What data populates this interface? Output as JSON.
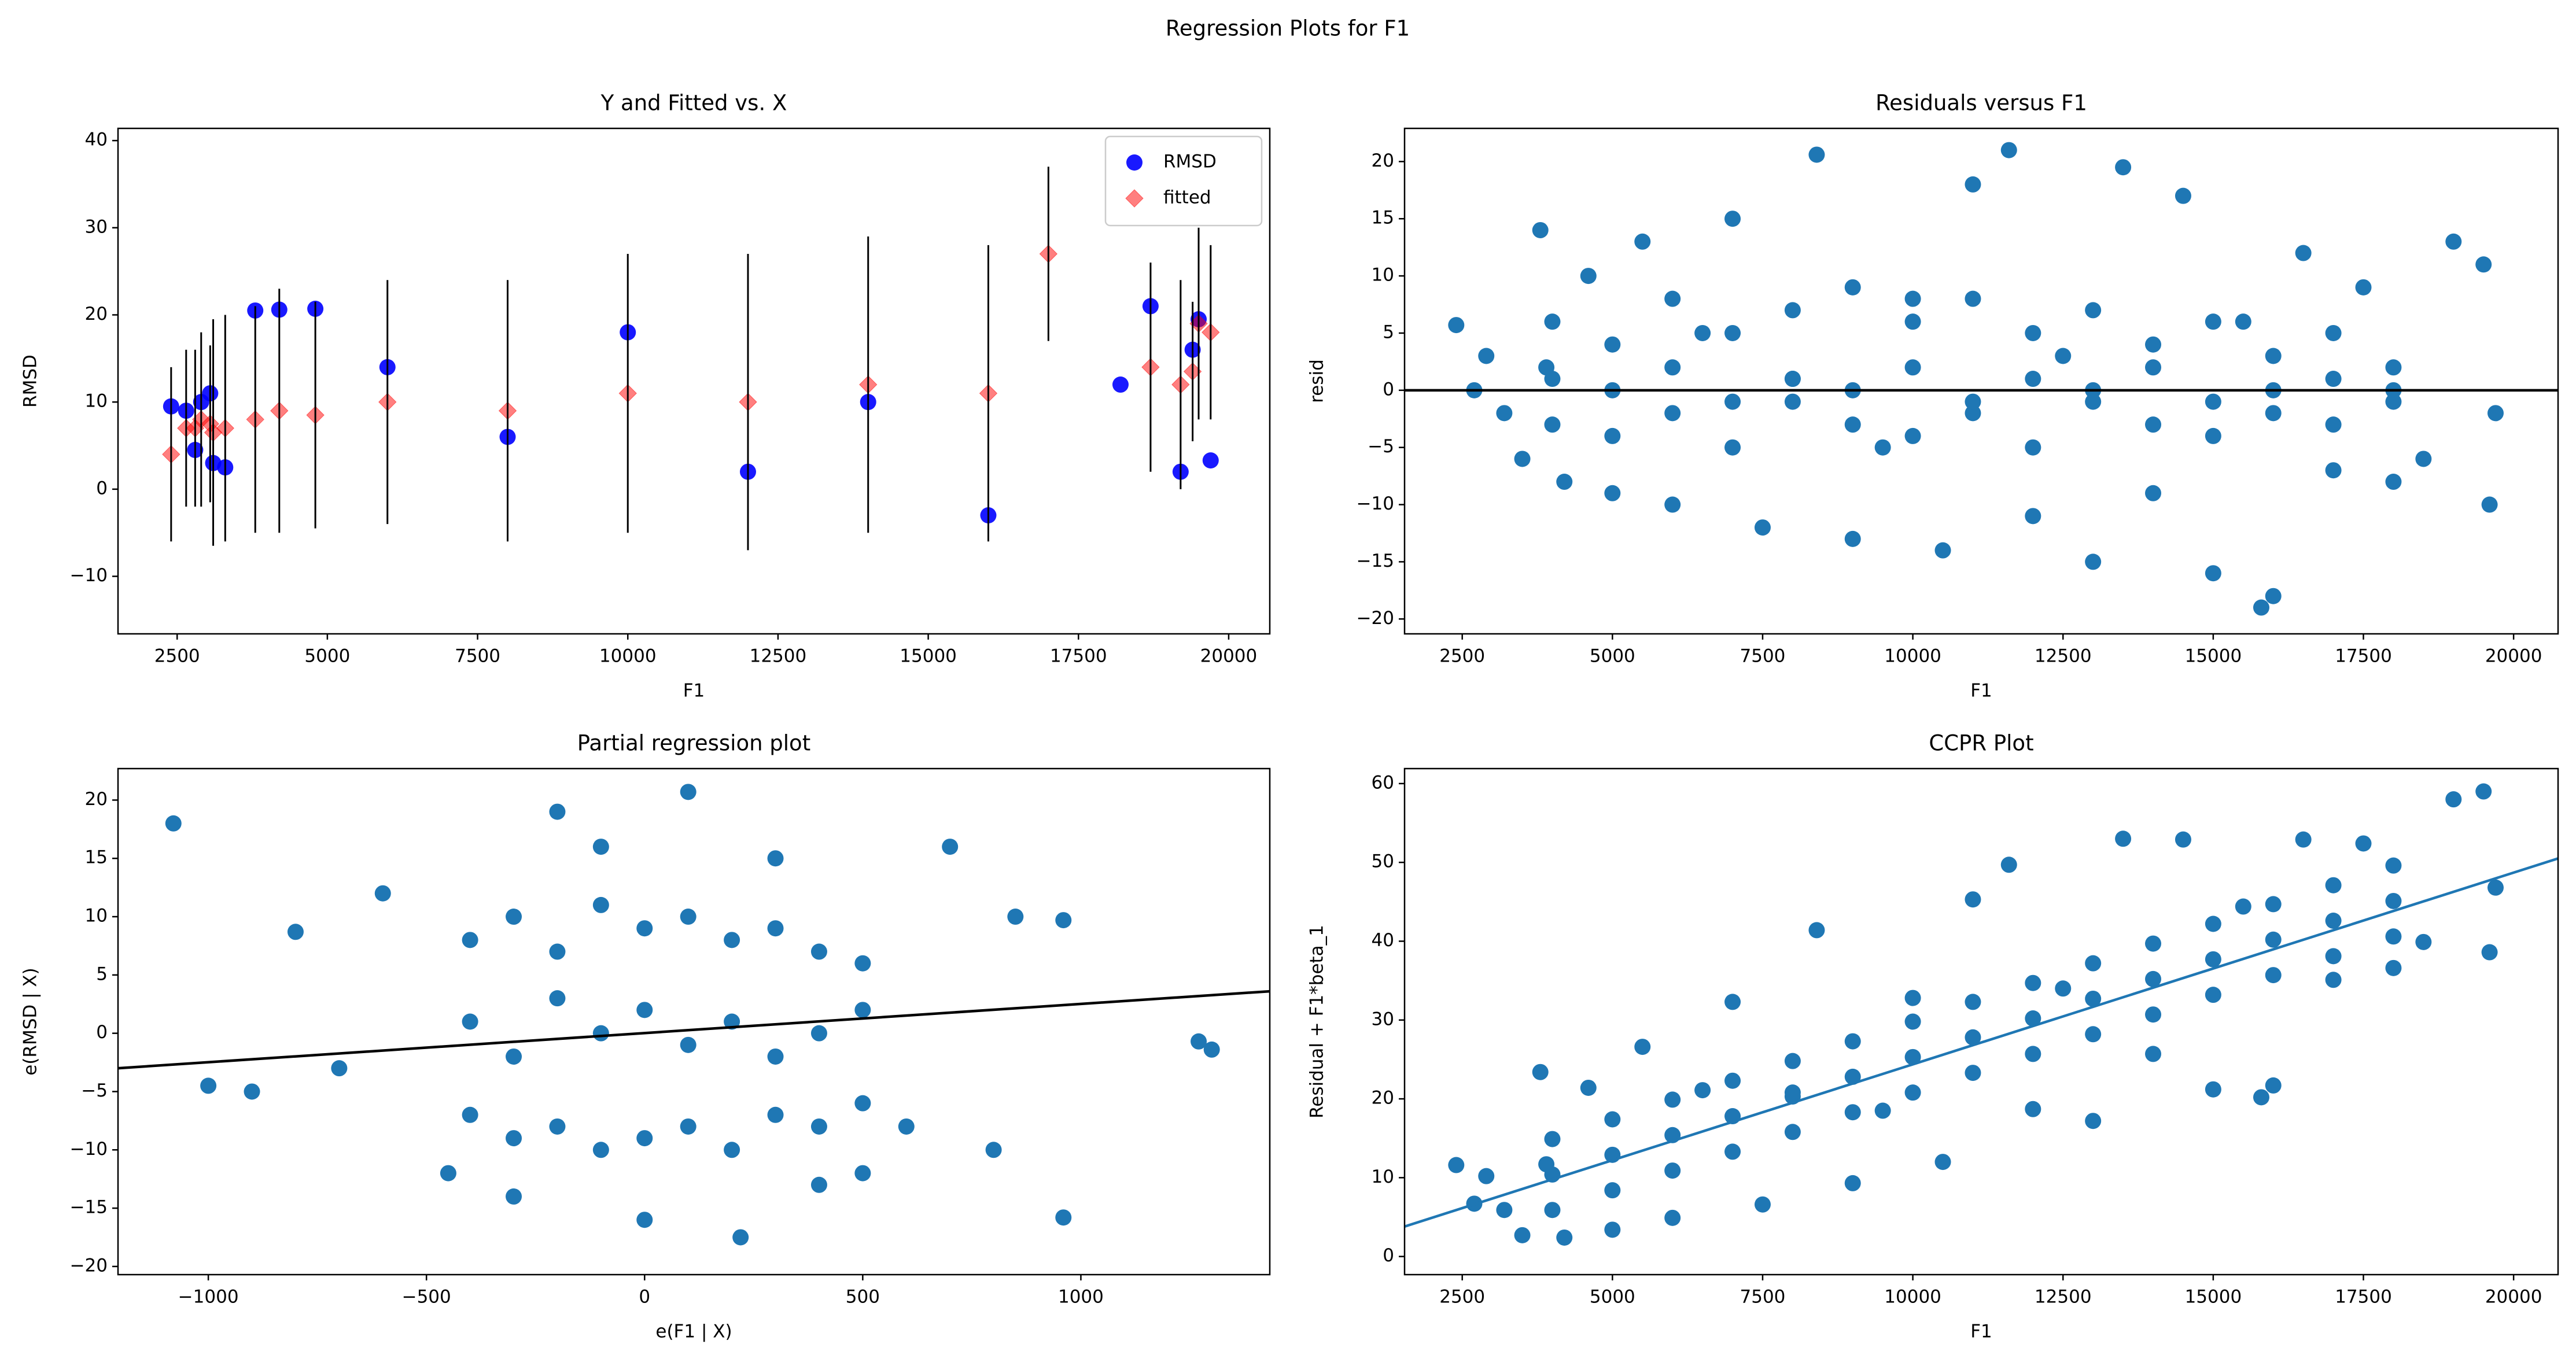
{
  "title": "Regression Plots for F1",
  "chart_data": [
    {
      "type": "scatter",
      "title": "Y and Fitted vs. X",
      "x_label": "F1",
      "y_label": "RMSD",
      "xlim": [
        1516,
        20684
      ],
      "ylim": [
        -16.6,
        41.4
      ],
      "xticks": [
        2500,
        5000,
        7500,
        10000,
        12500,
        15000,
        17500,
        20000
      ],
      "yticks": [
        {
          "value": -10,
          "label": "−10"
        },
        0,
        10,
        20,
        30,
        40
      ],
      "legend": "upper right",
      "series": [
        {
          "name": "RMSD",
          "color": "#0000ff",
          "marker": "o",
          "x": [
            2400,
            2650,
            2900,
            3050,
            2800,
            3100,
            3300,
            3800,
            4200,
            4800,
            6000,
            8000,
            10000,
            12000,
            14000,
            16000,
            18200,
            18700,
            19200,
            19500,
            19700,
            19400
          ],
          "values": [
            9.5,
            9,
            10,
            11,
            4.5,
            3,
            2.5,
            20.5,
            20.6,
            20.7,
            14,
            6,
            18,
            2,
            10,
            -3,
            12,
            21,
            2,
            19.5,
            3.3,
            16
          ]
        },
        {
          "name": "fitted",
          "color": "#ff0000",
          "marker": "D",
          "x": [
            2400,
            2650,
            2900,
            3050,
            2800,
            3100,
            3300,
            3800,
            4200,
            4800,
            6000,
            8000,
            10000,
            12000,
            14000,
            16000,
            17000,
            18700,
            19200,
            19500,
            19700,
            19400
          ],
          "values": [
            4,
            7,
            8,
            7.5,
            7,
            6.5,
            7,
            8,
            9,
            8.5,
            10,
            9,
            11,
            10,
            12,
            11,
            27,
            14,
            12,
            19,
            18,
            13.5
          ],
          "errors": [
            10,
            9,
            10,
            9,
            9,
            13,
            13,
            13,
            14,
            13,
            14,
            15,
            16,
            17,
            17,
            17,
            10,
            12,
            12,
            11,
            10,
            8
          ]
        }
      ]
    },
    {
      "type": "scatter",
      "title": "Residuals versus F1",
      "x_label": "F1",
      "y_label": "resid",
      "xlim": [
        1540,
        20740
      ],
      "ylim": [
        -21.3,
        22.9
      ],
      "xticks": [
        2500,
        5000,
        7500,
        10000,
        12500,
        15000,
        17500,
        20000
      ],
      "yticks": [
        {
          "value": -20,
          "label": "−20"
        },
        {
          "value": -15,
          "label": "−15"
        },
        {
          "value": -10,
          "label": "−10"
        },
        {
          "value": -5,
          "label": "−5"
        },
        0,
        5,
        10,
        15,
        20
      ],
      "color": "#1f77b4",
      "hline": 0,
      "hline_color": "#000000",
      "x": [
        2400,
        2700,
        2900,
        3200,
        3500,
        3800,
        3900,
        4200,
        4600,
        5000,
        5500,
        6000,
        6500,
        7000,
        7500,
        8000,
        8400,
        9000,
        9500,
        10000,
        10500,
        11000,
        11600,
        12000,
        12500,
        13000,
        13500,
        14000,
        14500,
        15000,
        15500,
        15800,
        16000,
        16500,
        17000,
        17500,
        18000,
        18500,
        19000,
        19500,
        19700,
        19600,
        4000,
        5000,
        6000,
        7000,
        8000,
        9000,
        10000,
        11000,
        12000,
        13000,
        14000,
        15000,
        16000,
        17000,
        18000,
        4000,
        5000,
        6000,
        7000,
        8000,
        9000,
        10000,
        11000,
        12000,
        13000,
        14000,
        15000,
        16000,
        17000,
        18000,
        4000,
        5000,
        6000,
        7000,
        8000,
        9000,
        10000,
        11000,
        12000,
        13000,
        14000,
        15000,
        16000,
        17000,
        18000
      ],
      "values": [
        5.7,
        0,
        3,
        -2,
        -6,
        14,
        2,
        -8,
        10,
        -9,
        13,
        -10,
        5,
        15,
        -12,
        1,
        20.6,
        -13,
        -5,
        8,
        -14,
        18,
        21,
        -11,
        3,
        -15,
        19.5,
        -9,
        17,
        -16,
        6,
        -19,
        -18,
        12,
        -7,
        9,
        -8,
        -6,
        13,
        11,
        -2,
        -10,
        6,
        4,
        8,
        5,
        7,
        9,
        6,
        8,
        5,
        7,
        4,
        6,
        3,
        5,
        2,
        -3,
        -4,
        -2,
        -5,
        -1,
        -3,
        -4,
        -2,
        -5,
        -1,
        -3,
        -4,
        -2,
        -3,
        -1,
        1,
        0,
        2,
        -1,
        1,
        0,
        2,
        -1,
        1,
        0,
        2,
        -1,
        0,
        1,
        0
      ]
    },
    {
      "type": "scatter",
      "title": "Partial regression plot",
      "x_label": "e(F1 | X)",
      "y_label": "e(RMSD | X)",
      "xlim": [
        -1207,
        1433
      ],
      "ylim": [
        -20.7,
        22.7
      ],
      "xticks": [
        {
          "value": -1000,
          "label": "−1000"
        },
        {
          "value": -500,
          "label": "−500"
        },
        0,
        500,
        1000
      ],
      "yticks": [
        {
          "value": -20,
          "label": "−20"
        },
        {
          "value": -15,
          "label": "−15"
        },
        {
          "value": -10,
          "label": "−10"
        },
        {
          "value": -5,
          "label": "−5"
        },
        0,
        5,
        10,
        15,
        20
      ],
      "color": "#1f77b4",
      "fit_line": {
        "x": [
          -1207,
          1433
        ],
        "y": [
          -3.0,
          3.6
        ],
        "color": "#000000"
      },
      "x": [
        -1080,
        1300,
        1270,
        960,
        960,
        -1000,
        -900,
        -800,
        -700,
        700,
        220,
        100,
        -200,
        -450,
        500,
        800,
        850,
        -600,
        600,
        -300,
        300,
        400,
        -100,
        0,
        -400,
        -300,
        -200,
        -100,
        0,
        100,
        200,
        300,
        400,
        500,
        -400,
        -300,
        -200,
        -100,
        0,
        100,
        200,
        300,
        400,
        500,
        -400,
        -300,
        -200,
        -100,
        0,
        100,
        200,
        300,
        400,
        500
      ],
      "values": [
        18,
        -1.4,
        -0.7,
        -15.8,
        9.7,
        -4.5,
        -5,
        8.7,
        -3,
        16,
        -17.5,
        20.7,
        19,
        -12,
        -12,
        -10,
        10,
        12,
        -8,
        -14,
        15,
        -13,
        16,
        -16,
        8,
        10,
        7,
        11,
        9,
        10,
        8,
        9,
        7,
        6,
        -7,
        -9,
        -8,
        -10,
        -9,
        -8,
        -10,
        -7,
        -8,
        -6,
        1,
        -2,
        3,
        0,
        2,
        -1,
        1,
        -2,
        0,
        2
      ]
    },
    {
      "type": "scatter",
      "title": "CCPR Plot",
      "x_label": "F1",
      "y_label": "Residual + F1*beta_1",
      "xlim": [
        1540,
        20740
      ],
      "ylim": [
        -2.3,
        61.9
      ],
      "xticks": [
        2500,
        5000,
        7500,
        10000,
        12500,
        15000,
        17500,
        20000
      ],
      "yticks": [
        0,
        10,
        20,
        30,
        40,
        50,
        60
      ],
      "color": "#1f77b4",
      "fit_line": {
        "x": [
          1540,
          20740
        ],
        "y": [
          3.8,
          50.5
        ],
        "color": "#1f77b4"
      },
      "x": [
        2400,
        2700,
        2900,
        3200,
        3500,
        3800,
        3900,
        4200,
        4600,
        5000,
        5500,
        6000,
        6500,
        7000,
        7500,
        8000,
        8400,
        9000,
        9500,
        10000,
        10500,
        11000,
        11600,
        12000,
        12500,
        13000,
        13500,
        14000,
        14500,
        15000,
        15500,
        15800,
        16000,
        16500,
        17000,
        17500,
        18000,
        18500,
        19000,
        19500,
        19700,
        19600,
        4000,
        5000,
        6000,
        7000,
        8000,
        9000,
        10000,
        11000,
        12000,
        13000,
        14000,
        15000,
        16000,
        17000,
        18000,
        4000,
        5000,
        6000,
        7000,
        8000,
        9000,
        10000,
        11000,
        12000,
        13000,
        14000,
        15000,
        16000,
        17000,
        18000,
        4000,
        5000,
        6000,
        7000,
        8000,
        9000,
        10000,
        11000,
        12000,
        13000,
        14000,
        15000,
        16000,
        17000,
        18000
      ],
      "values": [
        11.6,
        6.7,
        10.2,
        5.9,
        2.7,
        23.4,
        11.7,
        2.4,
        21.4,
        3.4,
        26.6,
        4.9,
        21.1,
        32.3,
        6.6,
        20.8,
        41.4,
        9.3,
        18.5,
        32.8,
        12,
        45.3,
        49.7,
        18.7,
        34,
        17.2,
        53,
        25.7,
        52.9,
        21.2,
        44.4,
        20.2,
        21.7,
        52.9,
        35.1,
        52.4,
        36.6,
        39.9,
        58,
        59,
        46.8,
        38.6,
        14.9,
        17.4,
        19.9,
        22.3,
        24.8,
        27.3,
        29.8,
        32.3,
        34.7,
        37.2,
        39.7,
        42.2,
        44.7,
        47.1,
        49.6,
        5.9,
        8.4,
        10.9,
        13.3,
        15.8,
        18.3,
        20.8,
        23.3,
        25.7,
        28.2,
        30.7,
        33.2,
        35.7,
        38.1,
        40.6,
        10.4,
        12.9,
        15.4,
        17.8,
        20.3,
        22.8,
        25.3,
        27.8,
        30.2,
        32.7,
        35.2,
        37.7,
        40.2,
        42.6,
        45.1
      ]
    }
  ]
}
